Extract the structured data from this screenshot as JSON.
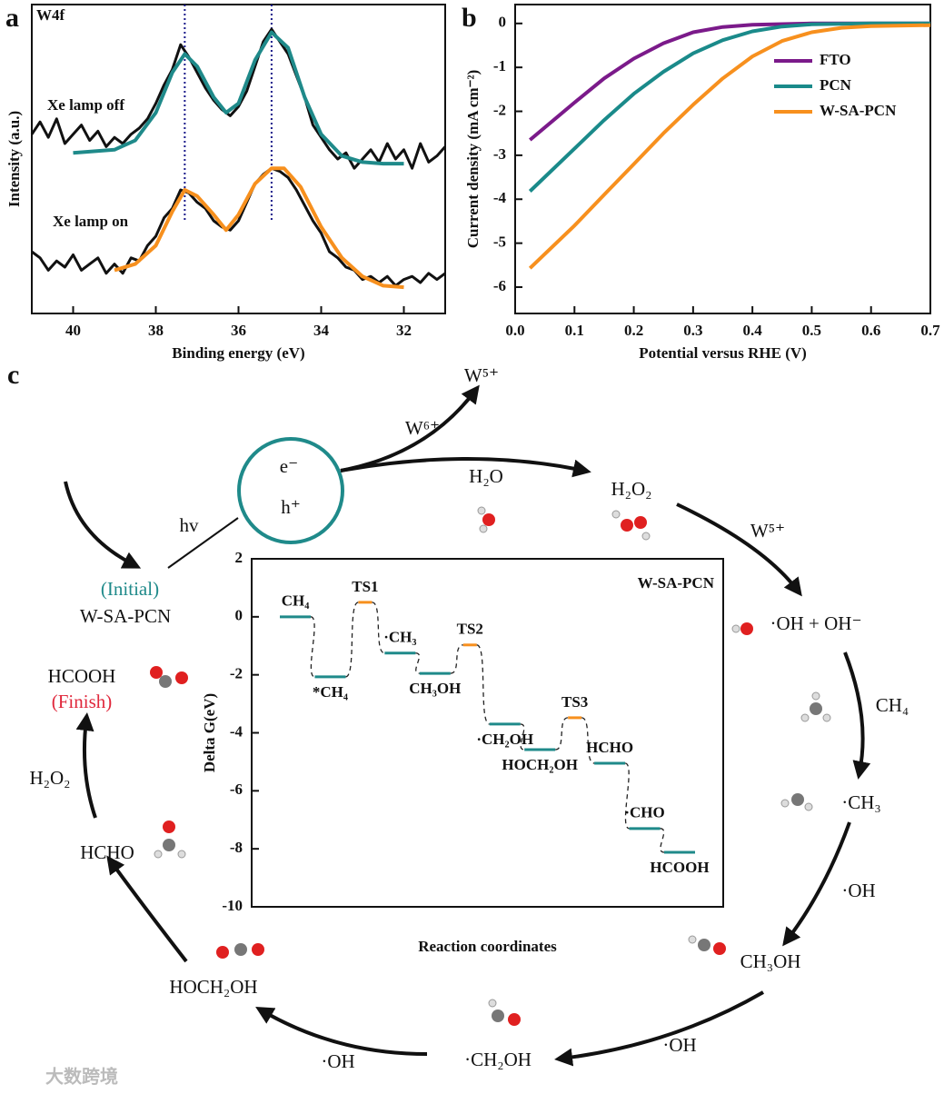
{
  "chart_data": [
    {
      "type": "line",
      "xlabel": "Binding energy (eV)",
      "ylabel": "Intensity (a.u.)",
      "annotations": [
        "W4f",
        "Xe lamp off",
        "Xe lamp on"
      ],
      "xlim": [
        41,
        31
      ],
      "ylim": [
        0,
        100
      ],
      "xticks": [
        40,
        38,
        36,
        34,
        32
      ],
      "vlines": [
        37.3,
        35.2
      ],
      "vline_color": "#1a1a8a",
      "series": [
        {
          "color": "#111111",
          "x": [
            41,
            40.8,
            40.6,
            40.4,
            40.2,
            40,
            39.8,
            39.6,
            39.4,
            39.2,
            39,
            38.8,
            38.6,
            38.4,
            38.2,
            38,
            37.8,
            37.6,
            37.4,
            37.2,
            37,
            36.8,
            36.6,
            36.4,
            36.2,
            36,
            35.8,
            35.6,
            35.4,
            35.2,
            35,
            34.8,
            34.6,
            34.4,
            34.2,
            34,
            33.8,
            33.6,
            33.4,
            33.2,
            33,
            32.8,
            32.6,
            32.4,
            32.2,
            32,
            31.8,
            31.6,
            31.4,
            31.2,
            31
          ],
          "values": [
            58,
            62,
            57,
            63,
            55,
            58,
            61,
            56,
            59,
            54,
            57,
            55,
            58,
            60,
            63,
            68,
            74,
            79,
            87,
            83,
            78,
            73,
            69,
            66,
            64,
            67,
            72,
            80,
            88,
            92,
            88,
            84,
            77,
            70,
            61,
            57,
            53,
            50,
            52,
            47,
            50,
            53,
            49,
            55,
            50,
            53,
            47,
            55,
            49,
            51,
            54
          ]
        },
        {
          "color": "#1f8a8a",
          "x": [
            40,
            39.5,
            39,
            38.5,
            38,
            37.6,
            37.3,
            37,
            36.6,
            36.3,
            36,
            35.6,
            35.2,
            34.8,
            34.4,
            34,
            33.5,
            33,
            32.5,
            32
          ],
          "values": [
            52,
            52.5,
            53,
            56,
            65,
            78,
            84,
            80,
            70,
            65,
            68,
            82,
            91,
            86,
            70,
            58,
            51,
            49,
            48.5,
            48.5
          ]
        },
        {
          "color": "#111111",
          "x": [
            41,
            40.8,
            40.6,
            40.4,
            40.2,
            40,
            39.8,
            39.6,
            39.4,
            39.2,
            39,
            38.8,
            38.6,
            38.4,
            38.2,
            38,
            37.8,
            37.6,
            37.4,
            37.2,
            37,
            36.8,
            36.6,
            36.4,
            36.2,
            36,
            35.8,
            35.6,
            35.4,
            35.2,
            35,
            34.8,
            34.6,
            34.4,
            34.2,
            34,
            33.8,
            33.6,
            33.4,
            33.2,
            33,
            32.8,
            32.6,
            32.4,
            32.2,
            32,
            31.8,
            31.6,
            31.4,
            31.2,
            31
          ],
          "values": [
            20,
            18,
            14,
            17,
            15,
            19,
            14,
            16,
            18,
            13,
            16,
            13,
            18,
            17,
            22,
            25,
            31,
            34,
            40,
            39,
            36,
            34,
            30,
            28,
            27,
            30,
            36,
            42,
            45,
            47,
            46,
            44,
            40,
            35,
            30,
            26,
            20,
            18,
            15,
            14,
            11,
            12,
            10,
            12,
            9,
            11,
            12,
            10,
            13,
            11,
            13
          ]
        },
        {
          "color": "#f7901e",
          "x": [
            39,
            38.5,
            38,
            37.6,
            37.3,
            37,
            36.6,
            36.3,
            36,
            35.6,
            35.2,
            34.9,
            34.5,
            34,
            33.5,
            33,
            32.5,
            32
          ],
          "values": [
            14,
            16,
            22,
            33,
            40,
            38,
            32,
            27,
            32,
            42,
            47,
            47,
            41,
            28,
            18,
            12,
            9,
            8.5
          ]
        }
      ]
    },
    {
      "type": "line",
      "xlabel": "Potential versus RHE (V)",
      "ylabel": "Current density (mA cm⁻²)",
      "xlim": [
        0,
        0.7
      ],
      "ylim": [
        -6.6,
        0.43
      ],
      "xticks": [
        {
          "value": 0,
          "label": "0.0"
        },
        0.1,
        0.2,
        0.3,
        0.4,
        0.5,
        0.6,
        0.7
      ],
      "yticks": [
        0,
        -1,
        -2,
        -3,
        -4,
        -5,
        -6
      ],
      "legend": "upper right",
      "series": [
        {
          "name": "FTO",
          "color": "#7b1a8a",
          "x": [
            0.025,
            0.1,
            0.15,
            0.2,
            0.25,
            0.3,
            0.35,
            0.4,
            0.5,
            0.7
          ],
          "values": [
            -2.65,
            -1.8,
            -1.25,
            -0.8,
            -0.45,
            -0.2,
            -0.08,
            -0.03,
            0,
            0
          ]
        },
        {
          "name": "PCN",
          "color": "#1a8a8a",
          "x": [
            0.025,
            0.1,
            0.15,
            0.2,
            0.25,
            0.3,
            0.35,
            0.4,
            0.45,
            0.5,
            0.6,
            0.7
          ],
          "values": [
            -3.82,
            -2.85,
            -2.2,
            -1.6,
            -1.1,
            -0.68,
            -0.38,
            -0.18,
            -0.07,
            -0.02,
            0,
            0
          ]
        },
        {
          "name": "W-SA-PCN",
          "color": "#f7901e",
          "x": [
            0.025,
            0.1,
            0.15,
            0.2,
            0.25,
            0.3,
            0.35,
            0.4,
            0.45,
            0.5,
            0.55,
            0.6,
            0.7
          ],
          "values": [
            -5.57,
            -4.6,
            -3.9,
            -3.2,
            -2.5,
            -1.85,
            -1.25,
            -0.75,
            -0.4,
            -0.2,
            -0.1,
            -0.06,
            -0.04
          ]
        }
      ]
    },
    {
      "type": "energy",
      "title": "W-SA-PCN",
      "xlabel": "Reaction coordinates",
      "ylabel": "Delta G(eV)",
      "ylim": [
        -10,
        2
      ],
      "yticks": [
        2,
        0,
        -2,
        -4,
        -6,
        -8,
        -10
      ],
      "categories": [
        "CH₄",
        "*CH₄",
        "TS1",
        "·CH₃",
        "CH₃OH",
        "TS2",
        "·CH₂OH",
        "HOCH₂OH",
        "TS3",
        "HCHO",
        "·CHO",
        "HCOOH"
      ],
      "values": [
        0,
        -2.07,
        0.5,
        -1.25,
        -1.95,
        -0.97,
        -3.7,
        -4.58,
        -3.48,
        -5.05,
        -7.3,
        -8.12
      ],
      "colors": [
        "#1f8a8a",
        "#1f8a8a",
        "#f7901e",
        "#1f8a8a",
        "#1f8a8a",
        "#f7901e",
        "#1f8a8a",
        "#1f8a8a",
        "#f7901e",
        "#1f8a8a",
        "#1f8a8a",
        "#1f8a8a"
      ]
    }
  ],
  "panel_labels": [
    "a",
    "b",
    "c"
  ],
  "diagram": {
    "carriers": [
      "e⁻",
      "h⁺"
    ],
    "labels": [
      "W⁵⁺",
      "W⁶⁺",
      "H₂O",
      "H₂O₂",
      "hv",
      "(Initial)",
      "W-SA-PCN",
      "HCOOH",
      "(Finish)",
      "H₂O₂",
      "HCHO",
      "HOCH₂OH",
      "·OH",
      "·CH₂OH",
      "·OH",
      "CH₃OH",
      "·OH",
      "·CH₃",
      "CH₄",
      "·OH + OH⁻",
      "W⁵⁺"
    ],
    "watermark": "大数跨境"
  }
}
